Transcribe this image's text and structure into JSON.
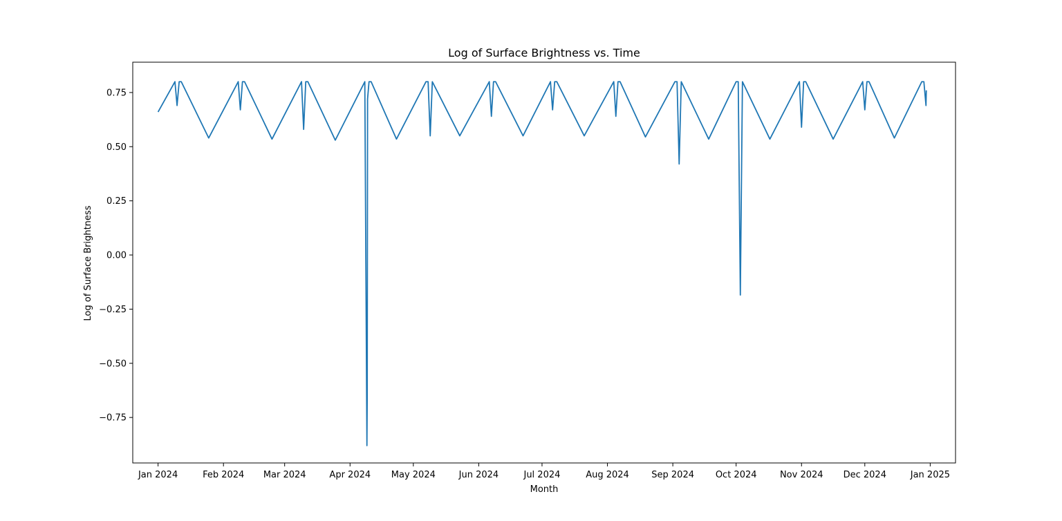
{
  "chart_data": {
    "type": "line",
    "title": "Log of Surface Brightness vs. Time",
    "xlabel": "Month",
    "ylabel": "Log of Surface Brightness",
    "x_type": "date",
    "xlim": [
      "2023-12-20",
      "2025-01-13"
    ],
    "ylim": [
      -0.96,
      0.89
    ],
    "x_ticks": [
      {
        "date": "2024-01-01",
        "label": "Jan 2024"
      },
      {
        "date": "2024-02-01",
        "label": "Feb 2024"
      },
      {
        "date": "2024-03-01",
        "label": "Mar 2024"
      },
      {
        "date": "2024-04-01",
        "label": "Apr 2024"
      },
      {
        "date": "2024-05-01",
        "label": "May 2024"
      },
      {
        "date": "2024-06-01",
        "label": "Jun 2024"
      },
      {
        "date": "2024-07-01",
        "label": "Jul 2024"
      },
      {
        "date": "2024-08-01",
        "label": "Aug 2024"
      },
      {
        "date": "2024-09-01",
        "label": "Sep 2024"
      },
      {
        "date": "2024-10-01",
        "label": "Oct 2024"
      },
      {
        "date": "2024-11-01",
        "label": "Nov 2024"
      },
      {
        "date": "2024-12-01",
        "label": "Dec 2024"
      },
      {
        "date": "2025-01-01",
        "label": "Jan 2025"
      }
    ],
    "y_ticks": [
      {
        "value": -0.75,
        "label": "−0.75"
      },
      {
        "value": -0.5,
        "label": "−0.50"
      },
      {
        "value": -0.25,
        "label": "−0.25"
      },
      {
        "value": 0.0,
        "label": "0.00"
      },
      {
        "value": 0.25,
        "label": "0.25"
      },
      {
        "value": 0.5,
        "label": "0.50"
      },
      {
        "value": 0.75,
        "label": "0.75"
      }
    ],
    "grid": false,
    "line_color": "#1f77b4",
    "series": [
      {
        "x": [
          "2024-01-01",
          "2024-01-09",
          "2024-01-10",
          "2024-01-11",
          "2024-01-12",
          "2024-01-25",
          "2024-02-08",
          "2024-02-09",
          "2024-02-10",
          "2024-02-11",
          "2024-02-24",
          "2024-03-09",
          "2024-03-10",
          "2024-03-11",
          "2024-03-12",
          "2024-03-25",
          "2024-04-08",
          "2024-04-09",
          "2024-04-09",
          "2024-04-09",
          "2024-04-10",
          "2024-04-11",
          "2024-04-23",
          "2024-05-07",
          "2024-05-08",
          "2024-05-09",
          "2024-05-10",
          "2024-05-23",
          "2024-06-06",
          "2024-06-07",
          "2024-06-08",
          "2024-06-09",
          "2024-06-22",
          "2024-07-05",
          "2024-07-06",
          "2024-07-07",
          "2024-07-08",
          "2024-07-21",
          "2024-08-04",
          "2024-08-05",
          "2024-08-06",
          "2024-08-07",
          "2024-08-19",
          "2024-09-02",
          "2024-09-03",
          "2024-09-04",
          "2024-09-05",
          "2024-09-18",
          "2024-10-01",
          "2024-10-02",
          "2024-10-03",
          "2024-10-04",
          "2024-10-17",
          "2024-10-31",
          "2024-11-01",
          "2024-11-02",
          "2024-11-03",
          "2024-11-16",
          "2024-11-30",
          "2024-12-01",
          "2024-12-02",
          "2024-12-03",
          "2024-12-15",
          "2024-12-28",
          "2024-12-29",
          "2024-12-30",
          "2024-12-30"
        ],
        "y": [
          0.66,
          0.8,
          0.69,
          0.8,
          0.8,
          0.54,
          0.8,
          0.67,
          0.8,
          0.8,
          0.535,
          0.8,
          0.58,
          0.8,
          0.8,
          0.53,
          0.8,
          -0.88,
          -0.65,
          0.72,
          0.8,
          0.8,
          0.535,
          0.8,
          0.8,
          0.55,
          0.8,
          0.55,
          0.8,
          0.64,
          0.8,
          0.8,
          0.55,
          0.8,
          0.67,
          0.8,
          0.8,
          0.55,
          0.8,
          0.64,
          0.8,
          0.8,
          0.545,
          0.8,
          0.8,
          0.42,
          0.8,
          0.535,
          0.8,
          0.8,
          -0.185,
          0.8,
          0.535,
          0.8,
          0.59,
          0.8,
          0.8,
          0.535,
          0.8,
          0.67,
          0.8,
          0.8,
          0.54,
          0.8,
          0.8,
          0.69,
          0.76
        ]
      }
    ]
  }
}
